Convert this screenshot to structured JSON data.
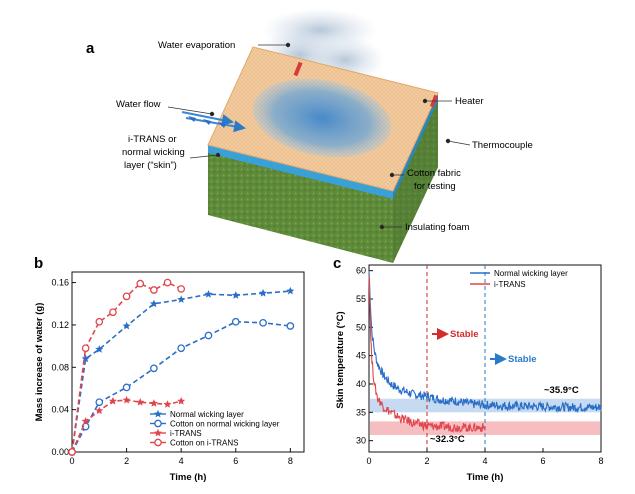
{
  "panel_a": {
    "letter": "a",
    "labels": {
      "water_evaporation": "Water evaporation",
      "water_flow": "Water flow",
      "heater": "Heater",
      "thermocouple": "Thermocouple",
      "skin_layer_1": "i-TRANS or",
      "skin_layer_2": "normal wicking",
      "skin_layer_3": "layer (“skin”)",
      "cotton_1": "Cotton fabric",
      "cotton_2": "for testing",
      "insulating_foam": "Insulating foam"
    },
    "colors": {
      "foam": "#5e8a3a",
      "skin_layer": "#3aa0d8",
      "fabric": "#f2c99a",
      "water": "#4a8fd0",
      "heater": "#d83a3a"
    }
  },
  "chart_data": [
    {
      "panel": "b",
      "type": "line",
      "xlabel": "Time (h)",
      "ylabel": "Mass increase of water (g)",
      "xlim": [
        0,
        8.5
      ],
      "ylim": [
        0,
        0.17
      ],
      "xticks": [
        "0",
        "2",
        "4",
        "6",
        "8"
      ],
      "yticks": [
        "0.00",
        "0.04",
        "0.08",
        "0.12",
        "0.16"
      ],
      "legend_position": "bottom-right",
      "series": [
        {
          "name": "Normal wicking layer",
          "color": "#2a6ec8",
          "marker": "star",
          "dashed": true,
          "x": [
            0,
            0.5,
            1,
            2,
            3,
            4,
            5,
            6,
            7,
            8
          ],
          "y": [
            0,
            0.088,
            0.097,
            0.119,
            0.14,
            0.144,
            0.149,
            0.148,
            0.15,
            0.152
          ]
        },
        {
          "name": "Cotton on normal wicking layer",
          "color": "#2a6ec8",
          "marker": "circle",
          "dashed": true,
          "x": [
            0,
            0.5,
            1,
            2,
            3,
            4,
            5,
            6,
            7,
            8
          ],
          "y": [
            0,
            0.024,
            0.047,
            0.061,
            0.079,
            0.098,
            0.11,
            0.123,
            0.122,
            0.119
          ]
        },
        {
          "name": "i-TRANS",
          "color": "#e0464e",
          "marker": "star",
          "dashed": true,
          "x": [
            0,
            0.5,
            1,
            1.5,
            2,
            2.5,
            3,
            3.5,
            4
          ],
          "y": [
            0,
            0.029,
            0.039,
            0.048,
            0.049,
            0.047,
            0.046,
            0.045,
            0.048
          ]
        },
        {
          "name": "Cotton on i-TRANS",
          "color": "#e0464e",
          "marker": "circle",
          "dashed": true,
          "x": [
            0,
            0.5,
            1,
            1.5,
            2,
            2.5,
            3,
            3.5,
            4
          ],
          "y": [
            0,
            0.098,
            0.123,
            0.132,
            0.147,
            0.159,
            0.153,
            0.16,
            0.154
          ]
        }
      ]
    },
    {
      "panel": "c",
      "type": "line",
      "xlabel": "Time (h)",
      "ylabel": "Skin temperature (°C)",
      "xlim": [
        0,
        8
      ],
      "ylim": [
        28,
        61
      ],
      "xticks": [
        "0",
        "2",
        "4",
        "6",
        "8"
      ],
      "yticks": [
        "30",
        "35",
        "40",
        "45",
        "50",
        "55",
        "60"
      ],
      "legend_position": "top-right",
      "series": [
        {
          "name": "Normal wicking layer",
          "color": "#2a6ec8",
          "x": [
            0,
            0.05,
            0.1,
            0.2,
            0.3,
            0.5,
            0.75,
            1,
            1.5,
            2,
            2.5,
            3,
            3.5,
            4,
            5,
            6,
            7,
            8
          ],
          "y": [
            60,
            54,
            49,
            45.5,
            43.5,
            41.5,
            40,
            39.2,
            38.2,
            37.8,
            37.2,
            37,
            36.5,
            36.3,
            36.1,
            36.0,
            35.9,
            35.9
          ],
          "band": [
            35.0,
            37.4
          ],
          "band_color": "#bcd5ee"
        },
        {
          "name": "i-TRANS",
          "color": "#e0464e",
          "x": [
            0,
            0.05,
            0.1,
            0.2,
            0.3,
            0.5,
            0.75,
            1,
            1.5,
            2,
            2.5,
            3,
            3.5,
            4
          ],
          "y": [
            60,
            50,
            44,
            39.5,
            37.5,
            36,
            35,
            34.2,
            33.2,
            32.6,
            32.5,
            32.4,
            32.3,
            32.3
          ],
          "band": [
            31.0,
            33.4
          ],
          "band_color": "#f5b3b6"
        }
      ],
      "annotations": {
        "stable_red": "Stable",
        "stable_blue": "Stable",
        "temp_blue": "~35.9°C",
        "temp_red": "~32.3°C",
        "stable_red_time": 2,
        "stable_blue_time": 4
      }
    }
  ]
}
